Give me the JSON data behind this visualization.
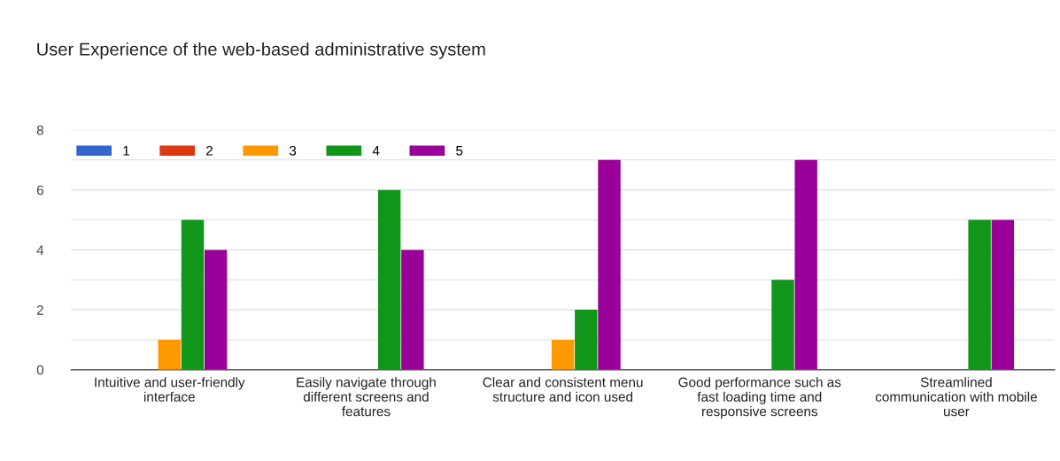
{
  "chart_data": {
    "type": "bar",
    "title": "User Experience of the web-based administrative system",
    "categories": [
      "Intuitive and user-friendly interface",
      "Easily navigate through different screens and features",
      "Clear and consistent menu structure and icon used",
      "Good performance such as fast loading time and responsive screens",
      "Streamlined communication with mobile user"
    ],
    "series": [
      {
        "name": "1",
        "color": "#3366cc",
        "values": [
          0,
          0,
          0,
          0,
          0
        ]
      },
      {
        "name": "2",
        "color": "#dc3912",
        "values": [
          0,
          0,
          0,
          0,
          0
        ]
      },
      {
        "name": "3",
        "color": "#ff9900",
        "values": [
          1,
          0,
          1,
          0,
          0
        ]
      },
      {
        "name": "4",
        "color": "#109618",
        "values": [
          5,
          6,
          2,
          3,
          5
        ]
      },
      {
        "name": "5",
        "color": "#990099",
        "values": [
          4,
          4,
          7,
          7,
          5
        ]
      }
    ],
    "ylim": [
      0,
      8
    ],
    "yticks": [
      0,
      {
        "value": 1,
        "label": null
      },
      2,
      {
        "value": 3,
        "label": null
      },
      4,
      {
        "value": 5,
        "label": null
      },
      6,
      {
        "value": 7,
        "label": null
      },
      8
    ],
    "grid": "y",
    "legend": "top left"
  }
}
